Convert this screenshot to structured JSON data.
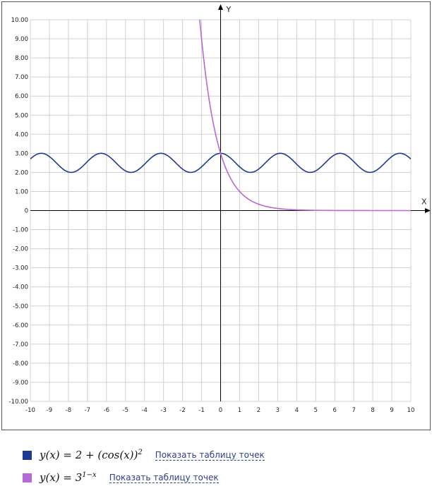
{
  "chart_data": {
    "type": "line",
    "title": "",
    "xlabel": "X",
    "ylabel": "Y",
    "xlim": [
      -10,
      10
    ],
    "ylim": [
      -10,
      10
    ],
    "grid": true,
    "x_ticks": [
      "-10",
      "-9",
      "-8",
      "-7",
      "-6",
      "-5",
      "-4",
      "-3",
      "-2",
      "-1",
      "0",
      "1",
      "2",
      "3",
      "4",
      "5",
      "6",
      "7",
      "8",
      "9",
      "10"
    ],
    "y_ticks": [
      "10.00",
      "9.00",
      "8.00",
      "7.00",
      "6.00",
      "5.00",
      "4.00",
      "3.00",
      "2.00",
      "1.00",
      "0",
      "-1.00",
      "-2.00",
      "-3.00",
      "-4.00",
      "-5.00",
      "-6.00",
      "-7.00",
      "-8.00",
      "-9.00",
      "-10.00"
    ],
    "series": [
      {
        "color": "#1f3a93",
        "formula": "y(x) = 2 + cos(x)^2",
        "x": [
          -10,
          -9.5,
          -9,
          -8.5,
          -8,
          -7.5,
          -7,
          -6.5,
          -6,
          -5.5,
          -5,
          -4.5,
          -4,
          -3.5,
          -3,
          -2.5,
          -2,
          -1.5,
          -1,
          -0.5,
          0,
          0.5,
          1,
          1.5,
          2,
          2.5,
          3,
          3.5,
          4,
          4.5,
          5,
          5.5,
          6,
          6.5,
          7,
          7.5,
          8,
          8.5,
          9,
          9.5,
          10
        ],
        "y": [
          2.7,
          3.0,
          2.83,
          2.36,
          2.02,
          2.12,
          2.57,
          2.95,
          2.92,
          2.5,
          2.08,
          2.04,
          2.43,
          2.88,
          2.98,
          2.64,
          2.17,
          2.01,
          2.29,
          2.77,
          3.0,
          2.77,
          2.29,
          2.01,
          2.17,
          2.64,
          2.98,
          2.88,
          2.43,
          2.04,
          2.08,
          2.5,
          2.92,
          2.95,
          2.57,
          2.12,
          2.02,
          2.36,
          2.83,
          3.0,
          2.7
        ]
      },
      {
        "color": "#b56ad8",
        "formula": "y(x) = 3^(1-x)",
        "x": [
          -1.1,
          -1,
          -0.8,
          -0.6,
          -0.4,
          -0.2,
          0,
          0.25,
          0.5,
          0.75,
          1,
          1.25,
          1.5,
          1.75,
          2,
          2.5,
          3,
          3.5,
          4,
          4.5,
          5,
          6,
          7,
          8,
          9,
          10
        ],
        "y": [
          10.0,
          9.0,
          7.22,
          5.8,
          4.66,
          3.74,
          3.0,
          2.28,
          1.73,
          1.32,
          1.0,
          0.76,
          0.58,
          0.44,
          0.33,
          0.19,
          0.11,
          0.06,
          0.04,
          0.02,
          0.01,
          0.0,
          0.0,
          0.0,
          0.0,
          0.0
        ]
      }
    ]
  },
  "legend": [
    {
      "color": "#1f3a93",
      "link": "Показать таблицу точек"
    },
    {
      "color": "#b56ad8",
      "link": "Показать таблицу точек"
    }
  ]
}
